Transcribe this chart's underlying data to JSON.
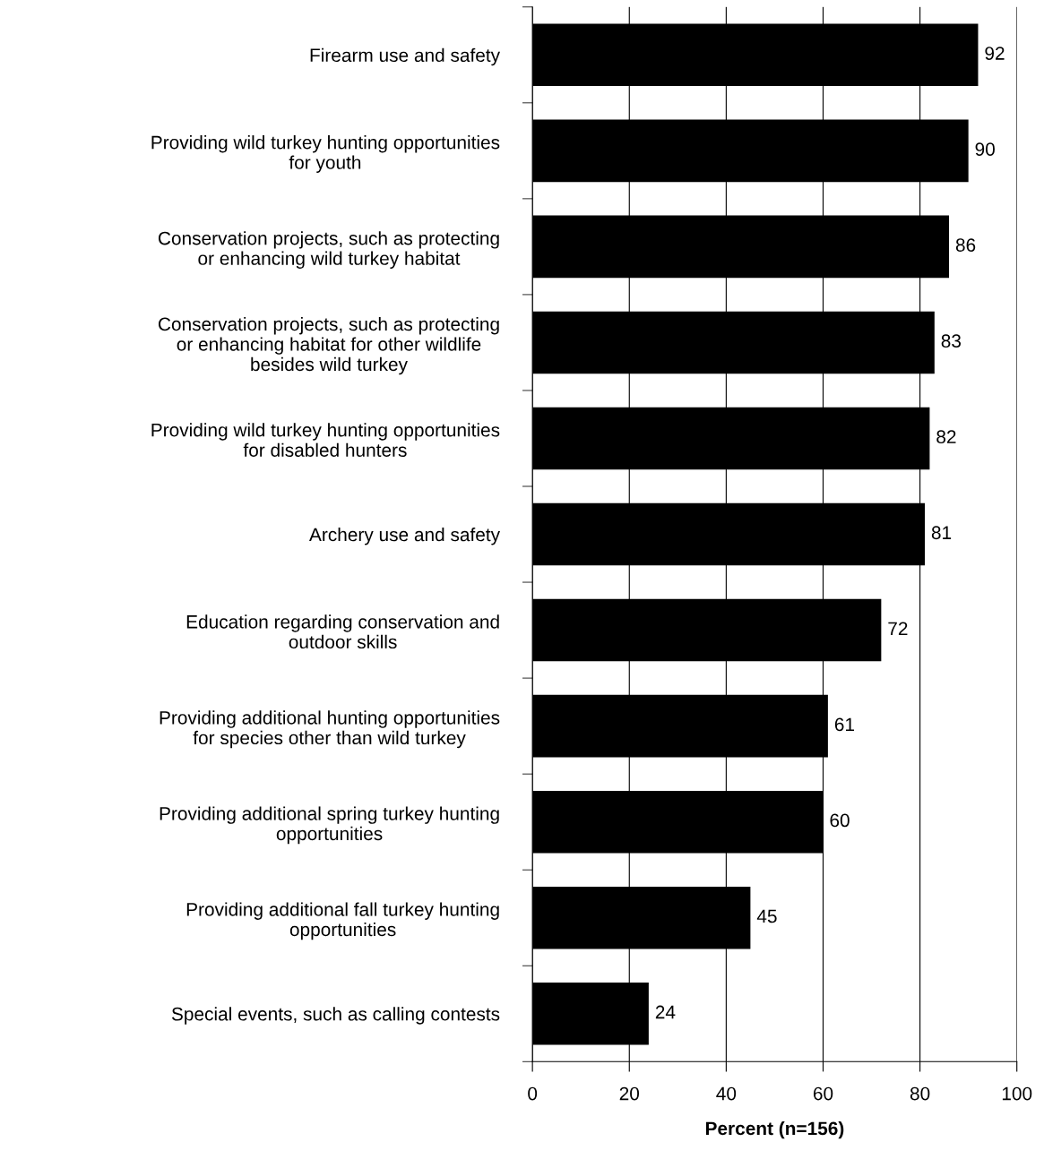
{
  "chart_data": {
    "type": "bar",
    "orientation": "horizontal",
    "xlabel": "Percent (n=156)",
    "categories": [
      "Firearm use and safety",
      "Providing wild turkey hunting opportunities\nfor youth",
      "Conservation projects, such as protecting\nor enhancing wild turkey habitat",
      "Conservation projects, such as protecting\nor enhancing habitat for other wildlife\nbesides wild turkey",
      "Providing wild turkey hunting opportunities\nfor disabled hunters",
      "Archery use and safety",
      "Education regarding conservation and\noutdoor skills",
      "Providing additional hunting opportunities\nfor species other than wild turkey",
      "Providing additional spring turkey hunting\nopportunities",
      "Providing additional fall turkey hunting\nopportunities",
      "Special events, such as calling contests"
    ],
    "values": [
      92,
      90,
      86,
      83,
      82,
      81,
      72,
      61,
      60,
      45,
      24
    ],
    "color": "#000000",
    "xlim": [
      0,
      100
    ],
    "xticks": [
      0,
      20,
      40,
      60,
      80,
      100
    ],
    "grid": "x",
    "data_labels": true,
    "legend": false
  }
}
